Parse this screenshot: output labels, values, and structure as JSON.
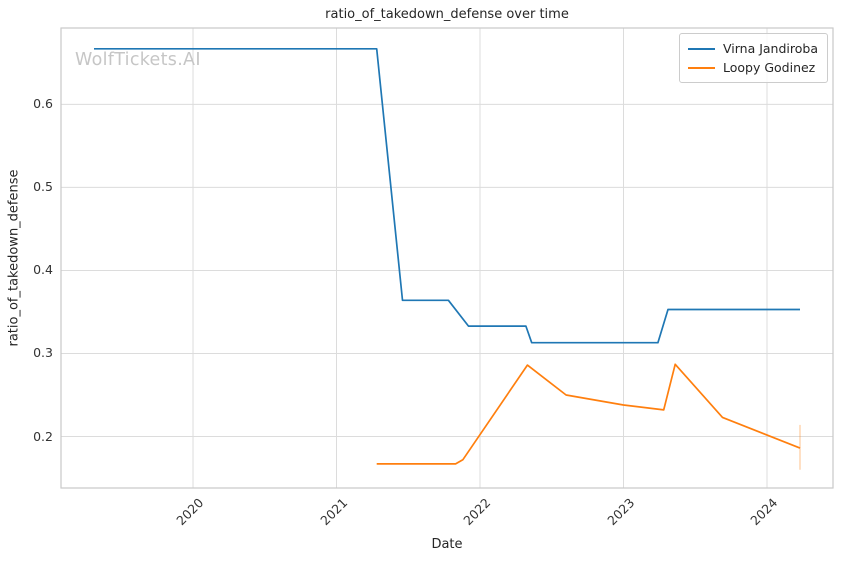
{
  "watermark": "WolfTickets.AI",
  "colors": {
    "blue": "#1f77b4",
    "orange": "#ff7f0e",
    "grid": "#dcdcdc",
    "spine": "#c9c9c9",
    "title_text": "#262626",
    "tick_text": "#333333",
    "watermark_text": "#c6c6c6",
    "background": "#ffffff"
  },
  "chart_data": {
    "type": "line",
    "title": "ratio_of_takedown_defense over time",
    "xlabel": "Date",
    "ylabel": "ratio_of_takedown_defense",
    "grid": true,
    "legend": {
      "position": "upper right",
      "entries": [
        "Virna Jandiroba",
        "Loopy Godinez"
      ]
    },
    "xlim": [
      2019.08,
      2024.46
    ],
    "ylim": [
      0.138,
      0.692
    ],
    "x_ticks": [
      {
        "value": 2020,
        "label": "2020"
      },
      {
        "value": 2021,
        "label": "2021"
      },
      {
        "value": 2022,
        "label": "2022"
      },
      {
        "value": 2023,
        "label": "2023"
      },
      {
        "value": 2024,
        "label": "2024"
      }
    ],
    "y_ticks": [
      {
        "value": 0.2,
        "label": "0.2"
      },
      {
        "value": 0.3,
        "label": "0.3"
      },
      {
        "value": 0.4,
        "label": "0.4"
      },
      {
        "value": 0.5,
        "label": "0.5"
      },
      {
        "value": 0.6,
        "label": "0.6"
      }
    ],
    "series": [
      {
        "name": "Virna Jandiroba",
        "color": "#1f77b4",
        "x": [
          2019.31,
          2021.28,
          2021.46,
          2021.78,
          2021.92,
          2022.32,
          2022.36,
          2023.24,
          2023.31,
          2024.23
        ],
        "y": [
          0.667,
          0.667,
          0.364,
          0.364,
          0.333,
          0.333,
          0.313,
          0.313,
          0.353,
          0.353
        ]
      },
      {
        "name": "Loopy Godinez",
        "color": "#ff7f0e",
        "x": [
          2021.28,
          2021.83,
          2021.88,
          2022.33,
          2022.6,
          2023.0,
          2023.28,
          2023.36,
          2023.69,
          2024.23
        ],
        "y": [
          0.167,
          0.167,
          0.172,
          0.286,
          0.25,
          0.238,
          0.232,
          0.287,
          0.223,
          0.186
        ],
        "endpoint_errorbar": {
          "x": 2024.23,
          "y_low": 0.16,
          "y_high": 0.214,
          "opacity": 0.3
        }
      }
    ]
  }
}
